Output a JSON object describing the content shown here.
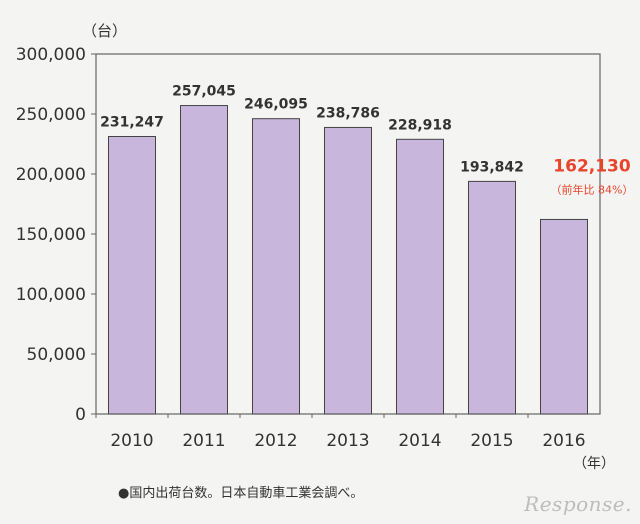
{
  "chart_data": {
    "type": "bar",
    "y_unit": "（台）",
    "x_unit": "（年）",
    "categories": [
      "2010",
      "2011",
      "2012",
      "2013",
      "2014",
      "2015",
      "2016"
    ],
    "values": [
      231247,
      257045,
      246095,
      238786,
      228918,
      193842,
      162130
    ],
    "value_labels": [
      "231,247",
      "257,045",
      "246,095",
      "238,786",
      "228,918",
      "193,842",
      "162,130"
    ],
    "highlight": {
      "index": 6,
      "note": "（前年比 84%）",
      "color": "#e8452b"
    },
    "yticks": [
      "300,000",
      "250,000",
      "200,000",
      "150,000",
      "100,000",
      "50,000",
      "0"
    ],
    "ylim": [
      0,
      300000
    ],
    "bar_color": "#c8b6dd",
    "grid": false
  },
  "footnote": "●国内出荷台数。日本自動車工業会調べ。",
  "logo": "Response."
}
